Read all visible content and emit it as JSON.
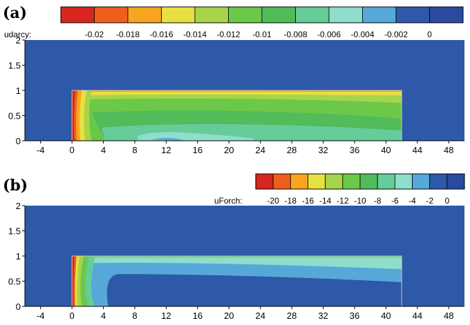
{
  "chart_data": [
    {
      "type": "heatmap",
      "panel_label": "(a)",
      "variable": "udarcy:",
      "colorbar": {
        "tick_labels": [
          "-0.02",
          "-0.018",
          "-0.016",
          "-0.014",
          "-0.012",
          "-0.01",
          "-0.008",
          "-0.006",
          "-0.004",
          "-0.002",
          "0"
        ],
        "range": [
          -0.022,
          0.001
        ]
      },
      "xlim": [
        -6,
        50
      ],
      "ylim": [
        0,
        2
      ],
      "x_ticks": [
        "-4",
        "0",
        "4",
        "8",
        "12",
        "16",
        "20",
        "24",
        "28",
        "32",
        "36",
        "40",
        "44",
        "48"
      ],
      "y_ticks": [
        "0",
        "0.5",
        "1",
        "1.5",
        "2"
      ],
      "domain_region": {
        "x": [
          0,
          42
        ],
        "y": [
          0,
          1
        ]
      }
    },
    {
      "type": "heatmap",
      "panel_label": "(b)",
      "variable": "uForch:",
      "colorbar": {
        "tick_labels": [
          "-20",
          "-18",
          "-16",
          "-14",
          "-12",
          "-10",
          "-8",
          "-6",
          "-4",
          "-2",
          "0"
        ],
        "range": [
          -22,
          1
        ]
      },
      "xlim": [
        -6,
        50
      ],
      "ylim": [
        0,
        2
      ],
      "x_ticks": [
        "-4",
        "0",
        "4",
        "8",
        "12",
        "16",
        "20",
        "24",
        "28",
        "32",
        "36",
        "40",
        "44",
        "48"
      ],
      "y_ticks": [
        "0",
        "0.5",
        "1",
        "1.5",
        "2"
      ],
      "domain_region": {
        "x": [
          0,
          42
        ],
        "y": [
          0,
          1
        ]
      }
    }
  ],
  "colors": {
    "palette": [
      "#d7261e",
      "#ee5f1e",
      "#f7a51e",
      "#e6e140",
      "#a6d44b",
      "#6cc849",
      "#52bb5a",
      "#66cc99",
      "#8edecb",
      "#56a8d8",
      "#2e58a8",
      "#2a4aa0"
    ],
    "background": "#2e58a8"
  }
}
